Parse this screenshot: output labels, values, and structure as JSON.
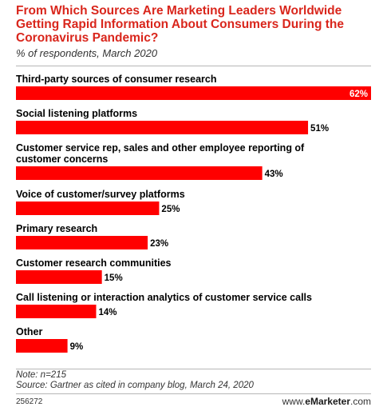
{
  "header": {
    "title": "From Which Sources Are Marketing Leaders Worldwide Getting Rapid Information About Consumers During the Coronavirus Pandemic?",
    "subtitle": "% of respondents, March 2020"
  },
  "chart_data": {
    "type": "bar",
    "orientation": "horizontal",
    "title": "From Which Sources Are Marketing Leaders Worldwide Getting Rapid Information About Consumers During the Coronavirus Pandemic?",
    "subtitle": "% of respondents, March 2020",
    "categories": [
      "Third-party sources of consumer research",
      "Social listening platforms",
      "Customer service rep, sales and other employee reporting of customer concerns",
      "Voice of customer/survey platforms",
      "Primary research",
      "Customer research communities",
      "Call listening or interaction analytics of customer service calls",
      "Other"
    ],
    "category_lines": [
      [
        "Third-party sources of consumer research"
      ],
      [
        "Social listening platforms"
      ],
      [
        "Customer service rep, sales and other employee reporting of",
        "customer concerns"
      ],
      [
        "Voice of customer/survey platforms"
      ],
      [
        "Primary research"
      ],
      [
        "Customer research communities"
      ],
      [
        "Call listening or interaction analytics of customer service calls"
      ],
      [
        "Other"
      ]
    ],
    "values": [
      62,
      51,
      43,
      25,
      23,
      15,
      14,
      9
    ],
    "value_labels": [
      "62%",
      "51%",
      "43%",
      "25%",
      "23%",
      "15%",
      "14%",
      "9%"
    ],
    "xlim": [
      0,
      62
    ],
    "grid": false,
    "bar_color": "#ff0000",
    "value_label_color_inside": "#ffffff",
    "value_label_color_outside": "#000000"
  },
  "footer": {
    "note": "Note: n=215",
    "source": "Source: Gartner as cited in company blog, March 24, 2020",
    "chart_id": "256272",
    "brand_prefix": "www.",
    "brand_name": "eMarketer",
    "brand_suffix": ".com"
  },
  "colors": {
    "title": "#d9261c",
    "bar": "#ff0000",
    "rule": "#b7b7b7"
  }
}
